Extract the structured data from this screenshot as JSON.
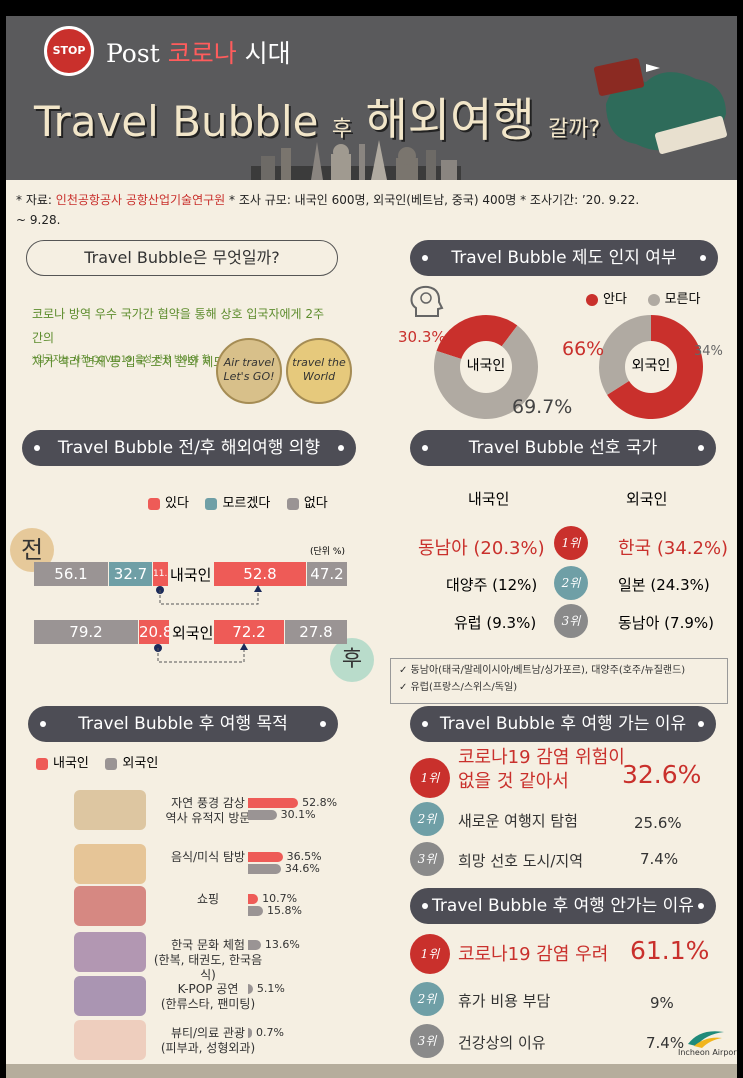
{
  "header": {
    "stop_badge": "STOP",
    "subtitle_prefix": "Post",
    "subtitle_red": "코로나",
    "subtitle_suffix": "시대",
    "title_en": "Travel Bubble",
    "title_after": "후",
    "title_main": "해외여행",
    "title_end": "갈까?"
  },
  "source": {
    "label1": "* 자료:",
    "org": "인천공항공사 공항산업기술연구원",
    "label2": "* 조사 규모: 내국인 600명, 외국인(베트남, 중국) 400명",
    "label3": "* 조사기간: ’20. 9.22.",
    "label4": "~ 9.28."
  },
  "what": {
    "question": "Travel Bubble은 무엇일까?",
    "line1": "코로나 방역 우수 국가간 협약을 통해 상호 입국자에게 2주간의",
    "line2": "자가 격리 면제 등 입국 조치 완화 제도",
    "note": "*입국자는 사전 COVID19 음성 판정 받아야 함",
    "img1": "Air travel Let's GO!",
    "img2": "travel the World"
  },
  "awareness": {
    "title": "Travel Bubble 제도 인지 여부",
    "legend": [
      {
        "label": "안다",
        "color": "#c9302c"
      },
      {
        "label": "모른다",
        "color": "#b0aaa2"
      }
    ],
    "domestic": {
      "label": "내국인",
      "know_text": "30.3%",
      "unknown_text": "69.7%"
    },
    "foreign": {
      "label": "외국인",
      "know_text": "66%",
      "unknown_text": "34%"
    }
  },
  "intent": {
    "title": "Travel Bubble 전/후 해외여행 의향",
    "legend": [
      {
        "label": "있다",
        "color": "#ee5b57"
      },
      {
        "label": "모르겠다",
        "color": "#6f9fa6"
      },
      {
        "label": "없다",
        "color": "#9a9494"
      }
    ],
    "before_label": "전",
    "after_label": "후",
    "unit": "(단위 %)",
    "domestic_label": "내국인",
    "foreign_label": "외국인",
    "domestic_before": [
      "56.1",
      "32.7",
      "11.2"
    ],
    "domestic_after": [
      "52.8",
      "47.2"
    ],
    "foreign_before": [
      "79.2",
      "20.8"
    ],
    "foreign_after": [
      "72.2",
      "27.8"
    ]
  },
  "preferred": {
    "title": "Travel Bubble 선호 국가",
    "col_domestic": "내국인",
    "col_foreign": "외국인",
    "rows": [
      {
        "rank": "1위",
        "domestic": "동남아 (20.3%)",
        "foreign": "한국 (34.2%)"
      },
      {
        "rank": "2위",
        "domestic": "대양주 (12%)",
        "foreign": "일본 (24.3%)"
      },
      {
        "rank": "3위",
        "domestic": "유럽 (9.3%)",
        "foreign": "동남아 (7.9%)"
      }
    ],
    "note1": "✓ 동남아(태국/말레이시아/베트남/싱가포르), 대양주(호주/뉴질랜드)",
    "note2": "✓ 유럽(프랑스/스위스/독일)"
  },
  "purpose": {
    "title": "Travel Bubble 후 여행 목적",
    "legend": [
      {
        "label": "내국인",
        "color": "#ee5b57"
      },
      {
        "label": "외국인",
        "color": "#9a9494"
      }
    ],
    "items": [
      {
        "label": "자연 풍경 감상\n역사 유적지 방문",
        "domestic_text": "52.8%",
        "foreign_text": "30.1%"
      },
      {
        "label": "음식/미식 탐방",
        "domestic_text": "36.5%",
        "foreign_text": "34.6%"
      },
      {
        "label": "쇼핑",
        "domestic_text": "10.7%",
        "foreign_text": "15.8%"
      },
      {
        "label": "한국 문화 체험\n(한복, 태권도, 한국음식)",
        "domestic_text": "",
        "foreign_text": "13.6%"
      },
      {
        "label": "K-POP 공연\n(한류스타, 팬미팅)",
        "domestic_text": "",
        "foreign_text": "5.1%"
      },
      {
        "label": "뷰티/의료 관광\n(피부과, 성형외과)",
        "domestic_text": "",
        "foreign_text": "0.7%"
      }
    ]
  },
  "go_reasons": {
    "title": "Travel Bubble 후 여행 가는 이유",
    "items": [
      {
        "rank": "1위",
        "text": "코로나19 감염 위험이\n없을 것 같아서",
        "value": "32.6%"
      },
      {
        "rank": "2위",
        "text": "새로운 여행지 탐험",
        "value": "25.6%"
      },
      {
        "rank": "3위",
        "text": "희망 선호 도시/지역",
        "value": "7.4%"
      }
    ]
  },
  "nogo_reasons": {
    "title": "Travel Bubble 후 여행 안가는 이유",
    "items": [
      {
        "rank": "1위",
        "text": "코로나19 감염 우려",
        "value": "61.1%"
      },
      {
        "rank": "2위",
        "text": "휴가 비용 부담",
        "value": "9%"
      },
      {
        "rank": "3위",
        "text": "건강상의 이유",
        "value": "7.4%"
      }
    ]
  },
  "footer": {
    "logo_text": "Incheon Airport"
  },
  "chart_data": [
    {
      "type": "pie",
      "title": "Travel Bubble 제도 인지 여부",
      "series": [
        {
          "name": "내국인",
          "categories": [
            "안다",
            "모른다"
          ],
          "values": [
            30.3,
            69.7
          ]
        },
        {
          "name": "외국인",
          "categories": [
            "안다",
            "모른다"
          ],
          "values": [
            66,
            34
          ]
        }
      ]
    },
    {
      "type": "bar",
      "title": "Travel Bubble 전/후 해외여행 의향",
      "categories": [
        "내국인 전",
        "내국인 후",
        "외국인 전",
        "외국인 후"
      ],
      "series": [
        {
          "name": "있다",
          "values": [
            56.1,
            52.8,
            79.2,
            72.2
          ]
        },
        {
          "name": "모르겠다",
          "values": [
            32.7,
            0,
            0,
            0
          ]
        },
        {
          "name": "없다",
          "values": [
            11.2,
            47.2,
            20.8,
            27.8
          ]
        }
      ]
    },
    {
      "type": "bar",
      "title": "Travel Bubble 후 여행 목적",
      "categories": [
        "자연 풍경 감상 역사 유적지 방문",
        "음식/미식 탐방",
        "쇼핑",
        "한국 문화 체험",
        "K-POP 공연",
        "뷰티/의료 관광"
      ],
      "series": [
        {
          "name": "내국인",
          "values": [
            52.8,
            36.5,
            10.7,
            0,
            0,
            0
          ]
        },
        {
          "name": "외국인",
          "values": [
            30.1,
            34.6,
            15.8,
            13.6,
            5.1,
            0.7
          ]
        }
      ]
    }
  ]
}
